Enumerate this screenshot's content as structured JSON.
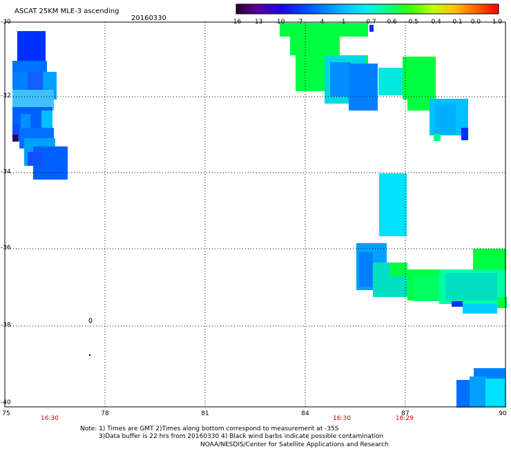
{
  "header": {
    "title": "ASCAT 25KM MLE-3 ascending",
    "date": "20160330"
  },
  "colorbar": {
    "ticks": [
      "-16",
      "-13",
      "-10",
      "-7",
      "-4",
      "-1",
      "-0.7",
      "-0.6",
      "-0.5",
      "-0.4",
      "-0.1",
      "0.0",
      "1.0"
    ],
    "colors": [
      "#2a0030",
      "#5a00a0",
      "#2000e0",
      "#0040ff",
      "#0080ff",
      "#00c0ff",
      "#00f0f0",
      "#00ff80",
      "#40ff00",
      "#c0ff00",
      "#ffc000",
      "#ff6000",
      "#ff0000"
    ]
  },
  "axes": {
    "y_ticks": [
      "-30",
      "-32",
      "-34",
      "-36",
      "-38",
      "-40"
    ],
    "x_ticks": [
      "75",
      "78",
      "81",
      "84",
      "87",
      "90"
    ],
    "times": [
      "16:30",
      "16:30",
      "16:29"
    ]
  },
  "notes": {
    "line1": "Note: 1) Times are GMT 2)Times along bottom correspond to measurement at -35S",
    "line2": "3)Data buffer is 22 hrs from 20160330 4) Black wind barbs indicate possible contamination",
    "line3": "NOAA/NESDIS/Center for Satellite Applications and Research"
  }
}
